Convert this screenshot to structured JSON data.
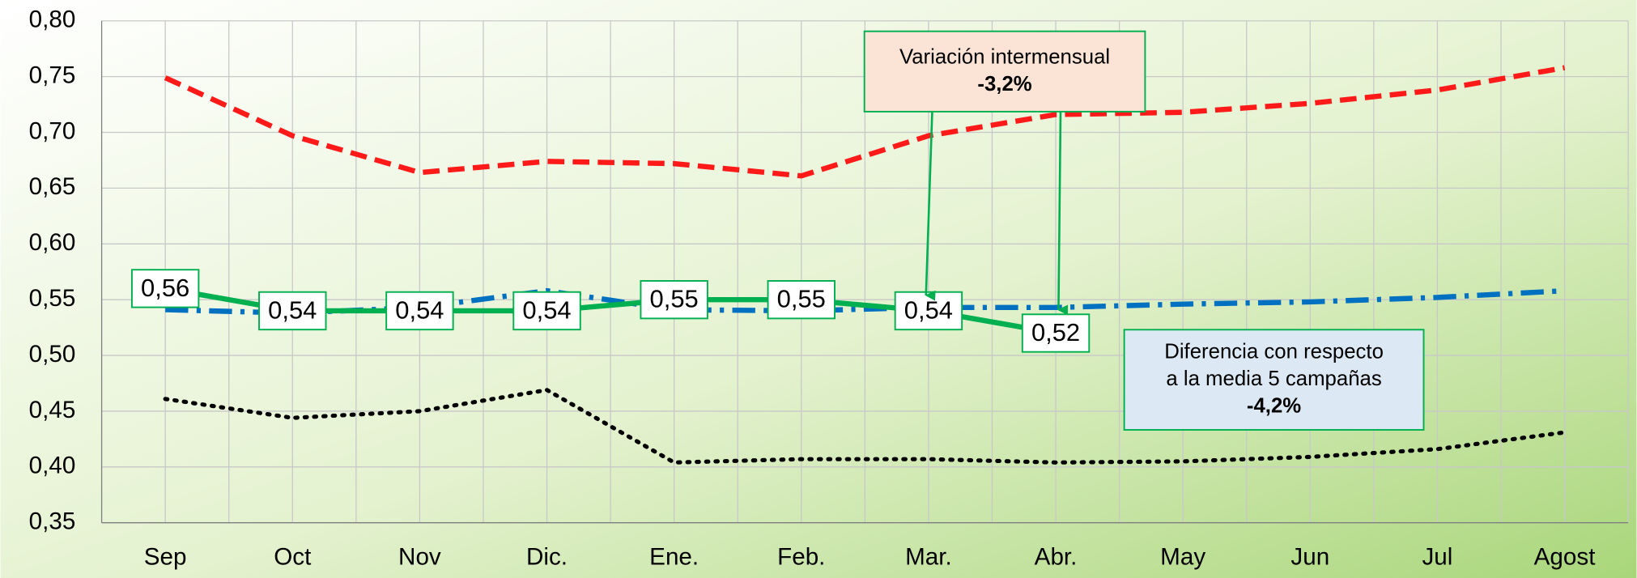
{
  "chart_data": {
    "type": "line",
    "categories": [
      "Sep",
      "Oct",
      "Nov",
      "Dic.",
      "Ene.",
      "Feb.",
      "Mar.",
      "Abr.",
      "May",
      "Jun",
      "Jul",
      "Agost"
    ],
    "series": [
      {
        "color": "#ff1a1a",
        "style": "dashed",
        "values": [
          0.749,
          0.697,
          0.664,
          0.674,
          0.672,
          0.661,
          0.697,
          0.716,
          0.718,
          0.726,
          0.738,
          0.758
        ]
      },
      {
        "color": "#0070c0",
        "style": "dashdot",
        "values": [
          0.541,
          0.538,
          0.543,
          0.558,
          0.541,
          0.54,
          0.543,
          0.543,
          0.546,
          0.548,
          0.552,
          0.558
        ]
      },
      {
        "color": "#000000",
        "style": "dotted",
        "values": [
          0.461,
          0.444,
          0.45,
          0.469,
          0.404,
          0.407,
          0.407,
          0.404,
          0.405,
          0.409,
          0.416,
          0.431
        ]
      },
      {
        "color": "#00b050",
        "style": "solid",
        "values": [
          0.56,
          0.54,
          0.54,
          0.54,
          0.55,
          0.55,
          0.54,
          0.52,
          null,
          null,
          null,
          null
        ],
        "value_labels": [
          "0,56",
          "0,54",
          "0,54",
          "0,54",
          "0,55",
          "0,55",
          "0,54",
          "0,52",
          null,
          null,
          null,
          null
        ]
      }
    ],
    "ylim": [
      0.35,
      0.8
    ],
    "yticks": [
      {
        "value": 0.35,
        "label": "0,35"
      },
      {
        "value": 0.4,
        "label": "0,40"
      },
      {
        "value": 0.45,
        "label": "0,45"
      },
      {
        "value": 0.5,
        "label": "0,50"
      },
      {
        "value": 0.55,
        "label": "0,55"
      },
      {
        "value": 0.6,
        "label": "0,60"
      },
      {
        "value": 0.65,
        "label": "0,65"
      },
      {
        "value": 0.7,
        "label": "0,70"
      },
      {
        "value": 0.75,
        "label": "0,75"
      },
      {
        "value": 0.8,
        "label": "0,80"
      }
    ],
    "annotations": [
      {
        "lines": [
          "Variación intermensual",
          "-3,2%"
        ]
      },
      {
        "lines": [
          "Diferencia con respecto",
          "a la media 5 campañas",
          "-4,2%"
        ]
      }
    ]
  }
}
